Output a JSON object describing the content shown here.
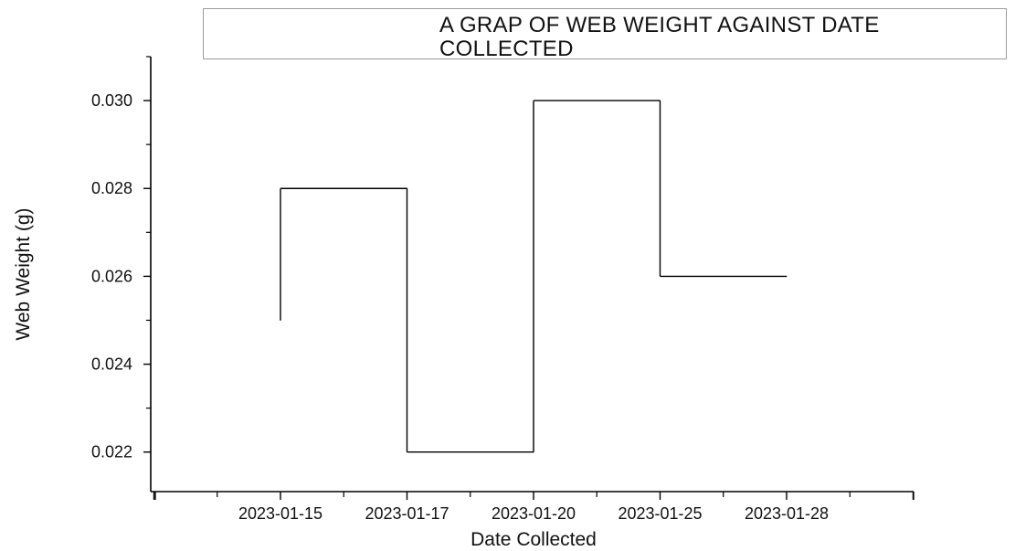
{
  "chart_data": {
    "type": "line",
    "step": true,
    "title": "A GRAP OF WEB WEIGHT AGAINST DATE COLLECTED",
    "xlabel": "Date Collected",
    "ylabel": "Web Weight (g)",
    "categories": [
      "2023-01-15",
      "2023-01-17",
      "2023-01-20",
      "2023-01-25",
      "2023-01-28"
    ],
    "values": [
      0.025,
      0.028,
      0.022,
      0.03,
      0.026
    ],
    "y_ticks": [
      "0.022",
      "0.024",
      "0.026",
      "0.028",
      "0.030"
    ],
    "ylim": [
      0.0211,
      0.031
    ],
    "grid": false,
    "line_color": "#000000"
  }
}
